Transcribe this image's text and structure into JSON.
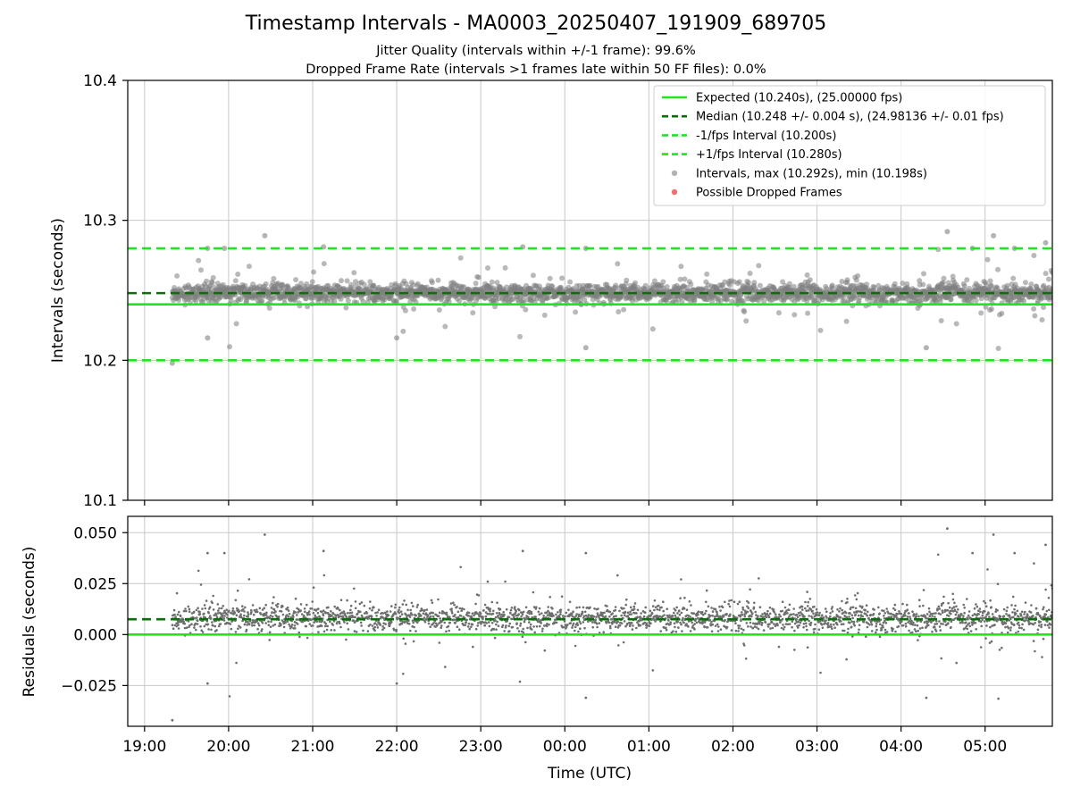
{
  "chart_data": [
    {
      "type": "scatter",
      "title": "Timestamp Intervals - MA0003_20250407_191909_689705",
      "subtitle_lines": [
        "Jitter Quality (intervals within +/-1 frame): 99.6%",
        "Dropped Frame Rate (intervals >1 frames late within 50 FF files): 0.0%"
      ],
      "ylabel": "Intervals (seconds)",
      "ylim": [
        10.1,
        10.4
      ],
      "xlim_hours": [
        18.8,
        29.8
      ],
      "grid": true,
      "legend_placement": "top-right",
      "y_ticks": [
        "10.1",
        "10.2",
        "10.3",
        "10.4"
      ],
      "y_tick_values": [
        10.1,
        10.2,
        10.3,
        10.4
      ],
      "reference_lines": [
        {
          "name": "Expected (10.240s), (25.00000 fps)",
          "y": 10.24,
          "style": "solid",
          "color": "#1ee61e"
        },
        {
          "name": "Median (10.248 +/- 0.004 s), (24.98136 +/- 0.01 fps)",
          "y": 10.248,
          "style": "dashed",
          "color": "#0a6e0a"
        },
        {
          "name": "-1/fps Interval (10.200s)",
          "y": 10.2,
          "style": "dashed",
          "color": "#1ee61e"
        },
        {
          "name": "+1/fps Interval (10.280s)",
          "y": 10.28,
          "style": "dashed",
          "color": "#1ee61e"
        }
      ],
      "series": [
        {
          "name": "Intervals, max (10.292s), min (10.198s)",
          "color": "#808080",
          "start_hour": 19.33,
          "end_hour": 29.8,
          "median": 10.248,
          "max": 10.292,
          "min": 10.198
        },
        {
          "name": "Possible Dropped Frames",
          "color": "#ee5555",
          "count": 0
        }
      ],
      "sample_points": [
        {
          "x": 19.33,
          "y": 10.198
        },
        {
          "x": 19.75,
          "y": 10.28
        },
        {
          "x": 19.95,
          "y": 10.28
        },
        {
          "x": 20.43,
          "y": 10.289
        },
        {
          "x": 21.13,
          "y": 10.281
        },
        {
          "x": 23.5,
          "y": 10.281
        },
        {
          "x": 24.25,
          "y": 10.28
        },
        {
          "x": 24.25,
          "y": 10.209
        },
        {
          "x": 28.3,
          "y": 10.209
        },
        {
          "x": 28.55,
          "y": 10.292
        },
        {
          "x": 28.85,
          "y": 10.28
        },
        {
          "x": 29.1,
          "y": 10.289
        },
        {
          "x": 29.35,
          "y": 10.28
        },
        {
          "x": 29.72,
          "y": 10.284
        },
        {
          "x": 22.0,
          "y": 10.216
        },
        {
          "x": 19.75,
          "y": 10.216
        }
      ]
    },
    {
      "type": "scatter",
      "ylabel": "Residuals (seconds)",
      "xlabel": "Time (UTC)",
      "ylim": [
        -0.045,
        0.058
      ],
      "y_ticks": [
        "−0.025",
        "0.000",
        "0.025",
        "0.050"
      ],
      "y_tick_values": [
        -0.025,
        0.0,
        0.025,
        0.05
      ],
      "x_ticks": [
        "19:00",
        "20:00",
        "21:00",
        "22:00",
        "23:00",
        "00:00",
        "01:00",
        "02:00",
        "03:00",
        "04:00",
        "05:00"
      ],
      "x_tick_hours": [
        19,
        20,
        21,
        22,
        23,
        24,
        25,
        26,
        27,
        28,
        29
      ],
      "grid": true,
      "reference_lines": [
        {
          "name": "Expected",
          "y": 0.0,
          "style": "solid",
          "color": "#1ee61e"
        },
        {
          "name": "Median",
          "y": 0.0075,
          "style": "dashed",
          "color": "#0a6e0a"
        }
      ],
      "series": [
        {
          "name": "Residuals",
          "color": "#707070",
          "start_hour": 19.33,
          "end_hour": 29.8,
          "median": 0.0075,
          "max": 0.052,
          "min": -0.042
        }
      ]
    }
  ]
}
